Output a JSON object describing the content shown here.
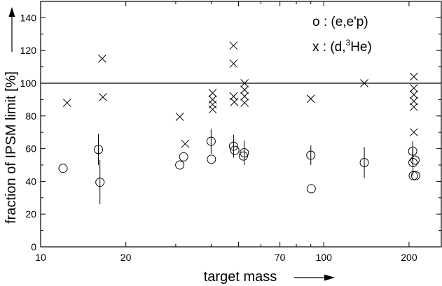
{
  "chart_data": {
    "type": "scatter",
    "title": "",
    "xlabel": "target mass",
    "ylabel": "fraction of IPSM limit [%]",
    "x_scale": "log",
    "xlim": [
      10,
      260
    ],
    "ylim": [
      0,
      150
    ],
    "x_ticks": [
      10,
      20,
      50,
      70,
      100,
      200
    ],
    "x_tick_labels": [
      "10",
      "20",
      "",
      "70",
      "100",
      "200"
    ],
    "y_ticks": [
      0,
      20,
      40,
      60,
      80,
      100,
      120,
      140
    ],
    "y_tick_labels": [
      "0",
      "20",
      "40",
      "60",
      "80",
      "100",
      "120",
      "140"
    ],
    "reference_line": 100,
    "grid": false,
    "legend_placement": "top-right",
    "legend": [
      {
        "marker": "o",
        "text": "o : (e,e'p)"
      },
      {
        "marker": "x",
        "text_prefix": "x : (d,",
        "superscript": "3",
        "text_suffix": "He)"
      }
    ],
    "series": [
      {
        "name": "(e,e'p)",
        "marker": "o",
        "points": [
          {
            "x": 12,
            "y": 48,
            "err": 0
          },
          {
            "x": 16,
            "y": 59.5,
            "err": 9.5
          },
          {
            "x": 16.2,
            "y": 39.5,
            "err": 13.5
          },
          {
            "x": 31,
            "y": 50,
            "err": 0
          },
          {
            "x": 32,
            "y": 55,
            "err": 0
          },
          {
            "x": 40,
            "y": 64.5,
            "err": 7.5
          },
          {
            "x": 40.1,
            "y": 53.5,
            "err": 0
          },
          {
            "x": 48,
            "y": 61.5,
            "err": 7
          },
          {
            "x": 48.5,
            "y": 59,
            "err": 0
          },
          {
            "x": 52,
            "y": 55.5,
            "err": 0
          },
          {
            "x": 52.4,
            "y": 57.5,
            "err": 7.5
          },
          {
            "x": 90,
            "y": 56,
            "err": 6
          },
          {
            "x": 90.3,
            "y": 35.5,
            "err": 0
          },
          {
            "x": 139,
            "y": 51.5,
            "err": 9.5
          },
          {
            "x": 206,
            "y": 58.5,
            "err": 6
          },
          {
            "x": 206.5,
            "y": 51.5,
            "err": 8
          },
          {
            "x": 207,
            "y": 43.5,
            "err": 0
          },
          {
            "x": 210,
            "y": 53,
            "err": 0
          },
          {
            "x": 211,
            "y": 43.5,
            "err": 0
          }
        ]
      },
      {
        "name": "(d,3He)",
        "marker": "x",
        "points": [
          {
            "x": 12.4,
            "y": 88
          },
          {
            "x": 16.5,
            "y": 115
          },
          {
            "x": 16.6,
            "y": 91.5
          },
          {
            "x": 31,
            "y": 79.5
          },
          {
            "x": 32.4,
            "y": 63
          },
          {
            "x": 40.5,
            "y": 94
          },
          {
            "x": 40.5,
            "y": 90
          },
          {
            "x": 40.5,
            "y": 87
          },
          {
            "x": 40.5,
            "y": 84
          },
          {
            "x": 48,
            "y": 123
          },
          {
            "x": 48,
            "y": 112
          },
          {
            "x": 48,
            "y": 92
          },
          {
            "x": 48.3,
            "y": 88.5
          },
          {
            "x": 52.5,
            "y": 100
          },
          {
            "x": 52.5,
            "y": 96
          },
          {
            "x": 52.5,
            "y": 92
          },
          {
            "x": 52.5,
            "y": 88
          },
          {
            "x": 90,
            "y": 90.5
          },
          {
            "x": 139,
            "y": 100
          },
          {
            "x": 208,
            "y": 104
          },
          {
            "x": 208,
            "y": 97
          },
          {
            "x": 208,
            "y": 93
          },
          {
            "x": 208,
            "y": 89
          },
          {
            "x": 208,
            "y": 85.5
          },
          {
            "x": 208,
            "y": 70
          }
        ]
      }
    ]
  }
}
